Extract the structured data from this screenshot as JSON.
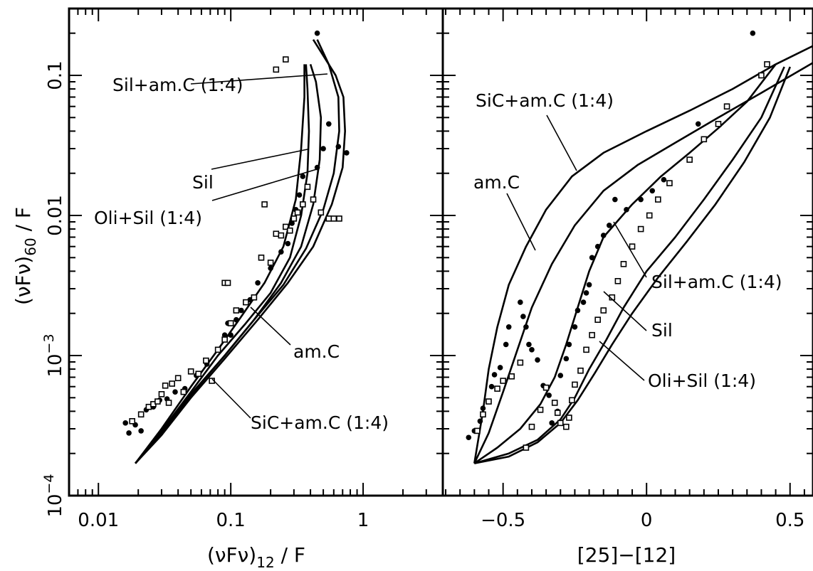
{
  "chart_data": [
    {
      "type": "scatter",
      "xlabel": "(νF_ν)_12 / F",
      "ylabel": "(νF_ν)_60 / F",
      "xscale": "log",
      "yscale": "log",
      "xlim": [
        0.006,
        4.0
      ],
      "ylim": [
        0.0001,
        0.3
      ],
      "x_tick_labels": [
        "0.01",
        "0.1",
        "1"
      ],
      "y_tick_labels": [
        "10^-4",
        "10^-3",
        "0.01",
        "0.1"
      ],
      "curves": [
        {
          "name": "Sil+am.C (1:4)",
          "x": [
            0.019,
            0.03,
            0.05,
            0.08,
            0.12,
            0.18,
            0.25,
            0.31,
            0.34,
            0.36,
            0.36
          ],
          "y": [
            0.00017,
            0.0003,
            0.0006,
            0.0011,
            0.0019,
            0.0033,
            0.006,
            0.013,
            0.03,
            0.07,
            0.12
          ]
        },
        {
          "name": "Sil",
          "x": [
            0.019,
            0.03,
            0.05,
            0.08,
            0.13,
            0.2,
            0.28,
            0.34,
            0.38,
            0.39,
            0.38,
            0.37
          ],
          "y": [
            0.00017,
            0.00029,
            0.00055,
            0.001,
            0.0017,
            0.0028,
            0.005,
            0.01,
            0.02,
            0.04,
            0.08,
            0.12
          ]
        },
        {
          "name": "Oli+Sil (1:4)",
          "x": [
            0.019,
            0.03,
            0.05,
            0.09,
            0.15,
            0.24,
            0.34,
            0.42,
            0.47,
            0.48,
            0.44,
            0.4
          ],
          "y": [
            0.00017,
            0.00028,
            0.00053,
            0.001,
            0.0018,
            0.0033,
            0.006,
            0.012,
            0.025,
            0.05,
            0.09,
            0.12
          ]
        },
        {
          "name": "am.C",
          "x": [
            0.019,
            0.03,
            0.05,
            0.09,
            0.15,
            0.25,
            0.37,
            0.5,
            0.6,
            0.66,
            0.65,
            0.55,
            0.45
          ],
          "y": [
            0.00017,
            0.00028,
            0.00052,
            0.001,
            0.0018,
            0.0032,
            0.0058,
            0.011,
            0.02,
            0.04,
            0.07,
            0.12,
            0.18
          ]
        },
        {
          "name": "SiC+am.C (1:4)",
          "x": [
            0.019,
            0.03,
            0.05,
            0.09,
            0.16,
            0.27,
            0.42,
            0.58,
            0.7,
            0.73,
            0.71,
            0.62,
            0.42
          ],
          "y": [
            0.00017,
            0.00027,
            0.0005,
            0.00095,
            0.0018,
            0.0033,
            0.006,
            0.012,
            0.022,
            0.04,
            0.07,
            0.1,
            0.18
          ]
        }
      ],
      "series": [
        {
          "name": "filled",
          "x": [
            0.016,
            0.017,
            0.019,
            0.021,
            0.023,
            0.026,
            0.029,
            0.033,
            0.038,
            0.045,
            0.055,
            0.066,
            0.08,
            0.09,
            0.095,
            0.1,
            0.11,
            0.12,
            0.14,
            0.16,
            0.2,
            0.24,
            0.27,
            0.29,
            0.31,
            0.33,
            0.35,
            0.45,
            0.5,
            0.55,
            0.65,
            0.75,
            0.45
          ],
          "y": [
            0.00033,
            0.00028,
            0.00032,
            0.00029,
            0.00041,
            0.00043,
            0.00048,
            0.00049,
            0.00055,
            0.00058,
            0.00072,
            0.00087,
            0.0011,
            0.0014,
            0.0017,
            0.0014,
            0.0018,
            0.0021,
            0.0025,
            0.0033,
            0.0042,
            0.0055,
            0.0063,
            0.0088,
            0.011,
            0.014,
            0.019,
            0.022,
            0.03,
            0.045,
            0.031,
            0.028,
            0.2
          ]
        },
        {
          "name": "open",
          "x": [
            0.018,
            0.021,
            0.024,
            0.026,
            0.028,
            0.03,
            0.032,
            0.034,
            0.036,
            0.04,
            0.044,
            0.05,
            0.057,
            0.065,
            0.072,
            0.08,
            0.09,
            0.1,
            0.11,
            0.13,
            0.15,
            0.17,
            0.18,
            0.2,
            0.22,
            0.24,
            0.26,
            0.28,
            0.3,
            0.32,
            0.35,
            0.38,
            0.42,
            0.48,
            0.55,
            0.6,
            0.66,
            0.22,
            0.26,
            0.09,
            0.095
          ],
          "y": [
            0.00034,
            0.00038,
            0.00043,
            0.00045,
            0.00047,
            0.00053,
            0.00061,
            0.00046,
            0.00063,
            0.00069,
            0.00055,
            0.00077,
            0.00074,
            0.00092,
            0.00066,
            0.0011,
            0.0013,
            0.0017,
            0.0021,
            0.0024,
            0.0026,
            0.005,
            0.012,
            0.0046,
            0.0074,
            0.0072,
            0.0083,
            0.0078,
            0.0095,
            0.0105,
            0.012,
            0.016,
            0.013,
            0.0105,
            0.0095,
            0.0095,
            0.0095,
            0.11,
            0.13,
            0.0033,
            0.0033
          ]
        }
      ],
      "annotations": [
        "Sil+am.C (1:4)",
        "Sil",
        "Oli+Sil (1:4)",
        "am.C",
        "SiC+am.C (1:4)"
      ]
    },
    {
      "type": "scatter",
      "xlabel": "[25]−[12]",
      "ylabel": "",
      "xscale": "linear",
      "yscale": "log",
      "xlim": [
        -0.71,
        0.58
      ],
      "ylim": [
        0.0001,
        0.3
      ],
      "x_tick_labels": [
        "−0.5",
        "0",
        "0.5"
      ],
      "curves": [
        {
          "name": "SiC+am.C (1:4)",
          "x": [
            -0.6,
            -0.57,
            -0.55,
            -0.52,
            -0.48,
            -0.42,
            -0.35,
            -0.26,
            -0.15,
            0.0,
            0.15,
            0.3,
            0.45,
            0.6
          ],
          "y": [
            0.00017,
            0.0004,
            0.0008,
            0.0016,
            0.0032,
            0.006,
            0.011,
            0.019,
            0.028,
            0.04,
            0.056,
            0.08,
            0.12,
            0.17
          ]
        },
        {
          "name": "am.C",
          "x": [
            -0.6,
            -0.55,
            -0.5,
            -0.45,
            -0.4,
            -0.33,
            -0.25,
            -0.15,
            -0.03,
            0.1,
            0.25,
            0.4,
            0.6
          ],
          "y": [
            0.00017,
            0.00028,
            0.00055,
            0.0011,
            0.0022,
            0.0045,
            0.0085,
            0.015,
            0.023,
            0.033,
            0.05,
            0.075,
            0.13
          ]
        },
        {
          "name": "Sil+am.C (1:4)",
          "x": [
            -0.6,
            -0.52,
            -0.44,
            -0.37,
            -0.32,
            -0.28,
            -0.24,
            -0.2,
            -0.15,
            -0.05,
            0.05,
            0.15,
            0.25,
            0.35,
            0.45
          ],
          "y": [
            0.00017,
            0.00022,
            0.0003,
            0.00045,
            0.0007,
            0.0012,
            0.0022,
            0.004,
            0.007,
            0.012,
            0.019,
            0.028,
            0.042,
            0.065,
            0.12
          ]
        },
        {
          "name": "Sil",
          "x": [
            -0.6,
            -0.48,
            -0.38,
            -0.3,
            -0.25,
            -0.2,
            -0.14,
            -0.08,
            0.0,
            0.1,
            0.2,
            0.3,
            0.4,
            0.48
          ],
          "y": [
            0.00017,
            0.0002,
            0.00025,
            0.00035,
            0.0005,
            0.0008,
            0.0013,
            0.0022,
            0.004,
            0.007,
            0.013,
            0.025,
            0.05,
            0.115
          ]
        },
        {
          "name": "Oli+Sil (1:4)",
          "x": [
            -0.6,
            -0.48,
            -0.38,
            -0.3,
            -0.24,
            -0.18,
            -0.12,
            -0.05,
            0.04,
            0.14,
            0.24,
            0.34,
            0.43,
            0.5
          ],
          "y": [
            0.00017,
            0.00019,
            0.00024,
            0.00033,
            0.00048,
            0.00075,
            0.0012,
            0.002,
            0.0036,
            0.0065,
            0.012,
            0.024,
            0.05,
            0.115
          ]
        }
      ],
      "series": [
        {
          "name": "filled",
          "x": [
            -0.62,
            -0.6,
            -0.58,
            -0.57,
            -0.55,
            -0.54,
            -0.53,
            -0.51,
            -0.49,
            -0.48,
            -0.44,
            -0.43,
            -0.42,
            -0.41,
            -0.4,
            -0.38,
            -0.36,
            -0.34,
            -0.33,
            -0.31,
            -0.3,
            -0.28,
            -0.27,
            -0.25,
            -0.24,
            -0.22,
            -0.21,
            -0.2,
            -0.19,
            -0.17,
            -0.15,
            -0.13,
            -0.11,
            -0.07,
            -0.02,
            0.02,
            0.06,
            0.18,
            0.37
          ],
          "y": [
            0.00026,
            0.00029,
            0.00034,
            0.00042,
            0.00047,
            0.0006,
            0.00073,
            0.00082,
            0.0012,
            0.0016,
            0.0024,
            0.0019,
            0.0016,
            0.0012,
            0.0011,
            0.00093,
            0.00061,
            0.00052,
            0.00033,
            0.0004,
            0.00072,
            0.00095,
            0.0012,
            0.0016,
            0.0021,
            0.0024,
            0.0028,
            0.0032,
            0.005,
            0.006,
            0.0072,
            0.0085,
            0.013,
            0.011,
            0.013,
            0.015,
            0.018,
            0.045,
            0.2
          ]
        },
        {
          "name": "open",
          "x": [
            -0.59,
            -0.57,
            -0.55,
            -0.52,
            -0.5,
            -0.47,
            -0.44,
            -0.42,
            -0.4,
            -0.37,
            -0.35,
            -0.32,
            -0.31,
            -0.3,
            -0.28,
            -0.27,
            -0.26,
            -0.25,
            -0.23,
            -0.21,
            -0.19,
            -0.17,
            -0.15,
            -0.12,
            -0.1,
            -0.08,
            -0.05,
            -0.02,
            0.01,
            0.04,
            0.08,
            0.15,
            0.2,
            0.25,
            0.28,
            0.4,
            0.42
          ],
          "y": [
            0.00029,
            0.00038,
            0.00047,
            0.00058,
            0.00066,
            0.00071,
            0.00089,
            0.00022,
            0.00031,
            0.00041,
            0.00059,
            0.00046,
            0.00039,
            0.00033,
            0.00031,
            0.00036,
            0.00048,
            0.00062,
            0.00078,
            0.0011,
            0.0014,
            0.0018,
            0.0021,
            0.0026,
            0.0034,
            0.0045,
            0.006,
            0.008,
            0.01,
            0.013,
            0.017,
            0.025,
            0.035,
            0.045,
            0.06,
            0.1,
            0.12
          ]
        }
      ],
      "annotations": [
        "SiC+am.C (1:4)",
        "am.C",
        "Sil+am.C (1:4)",
        "Sil",
        "Oli+Sil (1:4)"
      ]
    }
  ]
}
